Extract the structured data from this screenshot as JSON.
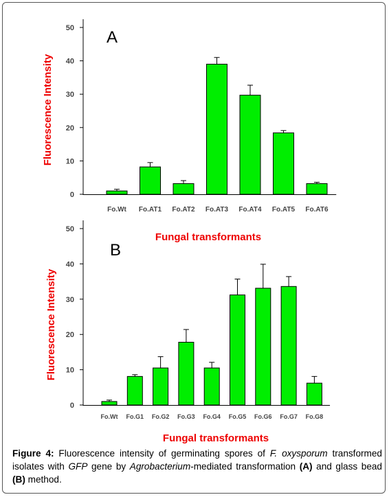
{
  "colors": {
    "bar": "#00ee00",
    "axis_label": "#ee0000",
    "axis": "#000000"
  },
  "chart_data": [
    {
      "type": "bar",
      "panel_label": "A",
      "categories": [
        "Fo.Wt",
        "Fo.AT1",
        "Fo.AT2",
        "Fo.AT3",
        "Fo.AT4",
        "Fo.AT5",
        "Fo.AT6"
      ],
      "values": [
        1,
        8.2,
        3.2,
        39,
        29.7,
        18.4,
        3.2
      ],
      "errors": [
        0.5,
        1.3,
        0.9,
        2.0,
        3.0,
        0.7,
        0.4
      ],
      "ylabel": "Fluorescence Intensity",
      "xlabel": "Fungal transformants",
      "ylim": [
        0,
        50
      ],
      "yticks": [
        0,
        10,
        20,
        30,
        40,
        50
      ],
      "grid": false
    },
    {
      "type": "bar",
      "panel_label": "B",
      "categories": [
        "Fo.Wt",
        "Fo.G1",
        "Fo.G2",
        "Fo.G3",
        "Fo.G4",
        "Fo.G5",
        "Fo.G6",
        "Fo.G7",
        "Fo.G8"
      ],
      "values": [
        1,
        8.1,
        10.5,
        17.8,
        10.5,
        31.2,
        33.1,
        33.6,
        6.2
      ],
      "errors": [
        0.4,
        0.5,
        3.2,
        3.6,
        1.6,
        4.5,
        6.8,
        2.8,
        1.9
      ],
      "ylabel": "Fluorescence Intensity",
      "xlabel": "Fungal transformants",
      "ylim": [
        0,
        50
      ],
      "yticks": [
        0,
        10,
        20,
        30,
        40,
        50
      ],
      "grid": false
    }
  ],
  "caption": {
    "label": "Figure 4:",
    "t1": " Fluorescence intensity of germinating spores of ",
    "species": "F. oxysporum",
    "t2": " transformed isolates with ",
    "gene": "GFP",
    "t3": " gene by ",
    "agro": "Agrobacterium",
    "t4": "-mediated transformation ",
    "a": "(A)",
    "t5": " and glass bead ",
    "b": "(B)",
    "t6": " method."
  }
}
